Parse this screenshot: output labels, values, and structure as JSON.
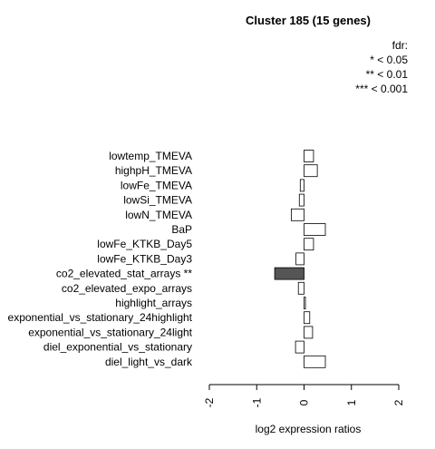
{
  "chart_data": {
    "type": "bar",
    "orientation": "horizontal",
    "title": "Cluster 185 (15 genes)",
    "xlabel": "log2 expression ratios",
    "ylabel": "",
    "xlim": [
      -2,
      2
    ],
    "x_ticks": [
      "-2",
      "-1",
      "0",
      "1",
      "2"
    ],
    "legend": {
      "title": "fdr:",
      "entries": [
        "* < 0.05",
        "** < 0.01",
        "*** < 0.001"
      ]
    },
    "categories": [
      "lowtemp_TMEVA",
      "highpH_TMEVA",
      "lowFe_TMEVA",
      "lowSi_TMEVA",
      "lowN_TMEVA",
      "BaP",
      "lowFe_KTKB_Day5",
      "lowFe_KTKB_Day3",
      "co2_elevated_stat_arrays **",
      "co2_elevated_expo_arrays",
      "highlight_arrays",
      "exponential_vs_stationary_24highlight",
      "exponential_vs_stationary_24light",
      "diel_exponential_vs_stationary",
      "diel_light_vs_dark"
    ],
    "values": [
      0.2,
      0.28,
      -0.08,
      -0.1,
      -0.27,
      0.45,
      0.2,
      -0.17,
      -0.62,
      -0.12,
      0.03,
      0.12,
      0.18,
      -0.18,
      0.45
    ],
    "bar_colors": [
      "#ffffff",
      "#ffffff",
      "#ffffff",
      "#ffffff",
      "#ffffff",
      "#ffffff",
      "#ffffff",
      "#ffffff",
      "#555555",
      "#ffffff",
      "#ffffff",
      "#ffffff",
      "#ffffff",
      "#ffffff",
      "#ffffff"
    ],
    "grid": false
  }
}
